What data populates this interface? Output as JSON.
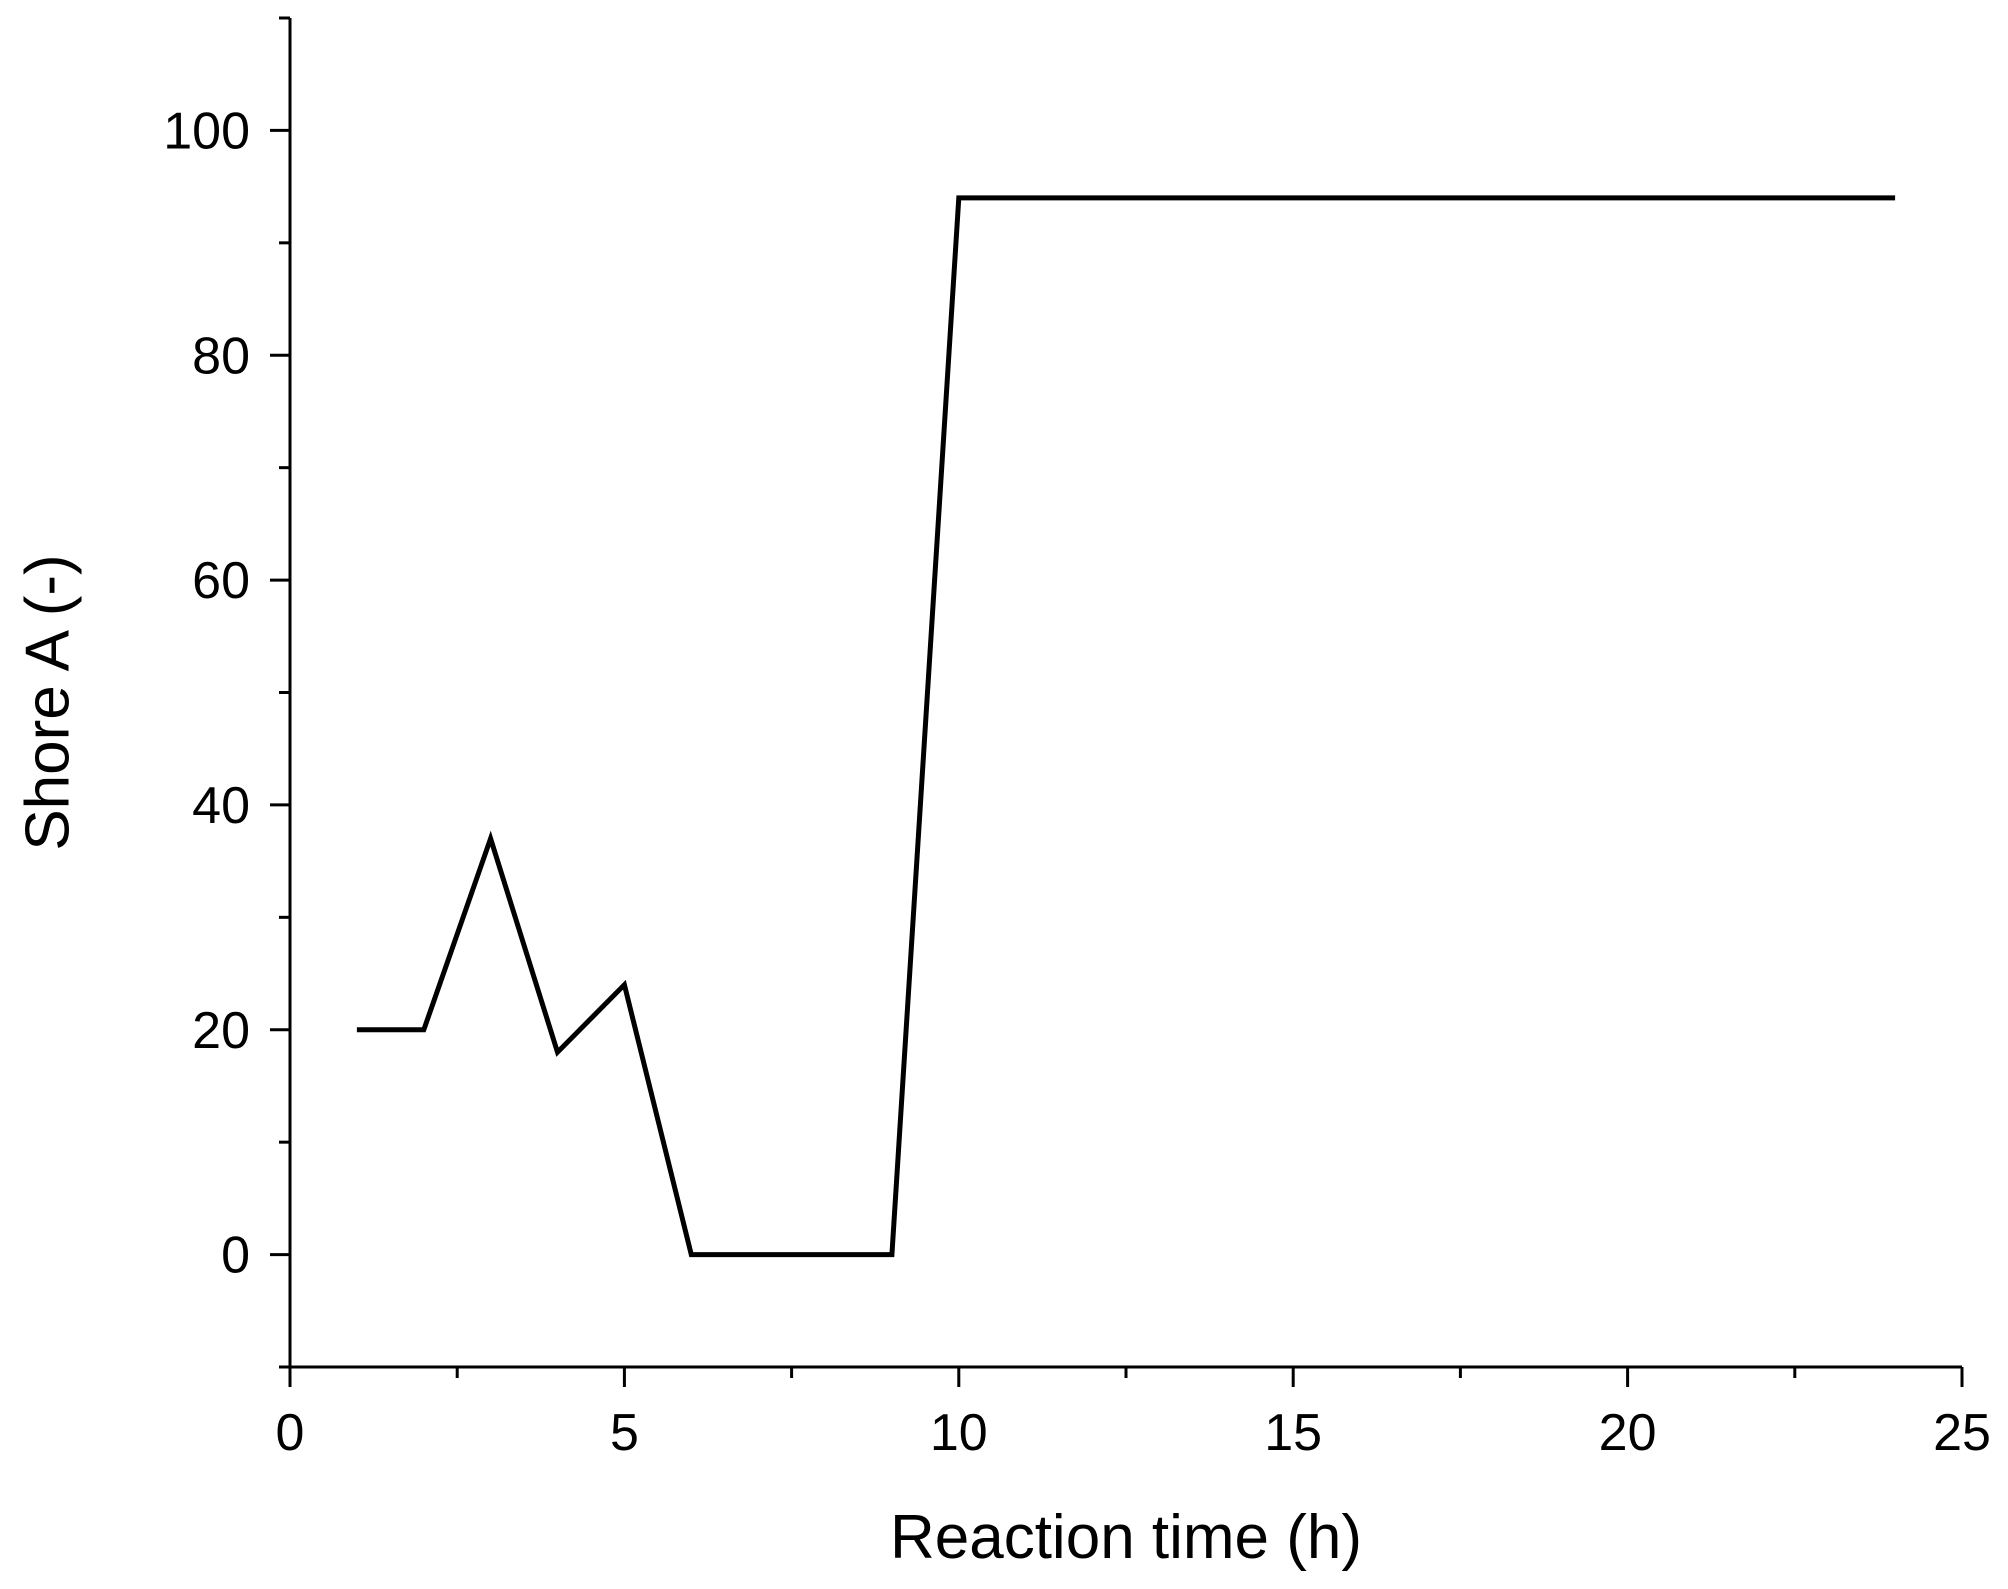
{
  "chart_data": {
    "type": "line",
    "xlabel": "Reaction time (h)",
    "ylabel": "Shore A (-)",
    "xlim": [
      0,
      25
    ],
    "ylim": [
      -10,
      110
    ],
    "x_ticks": [
      0,
      5,
      10,
      15,
      20,
      25
    ],
    "x_minor_ticks": [
      2.5,
      7.5,
      12.5,
      17.5,
      22.5
    ],
    "y_ticks": [
      0,
      20,
      40,
      60,
      80,
      100
    ],
    "y_minor_ticks": [
      -10,
      10,
      30,
      50,
      70,
      90,
      110
    ],
    "grid": false,
    "line_color": "#000000",
    "series": [
      {
        "x": [
          1,
          2,
          3,
          4,
          5,
          6,
          7,
          8,
          9,
          10,
          24
        ],
        "y": [
          20,
          20,
          37,
          18,
          24,
          0,
          0,
          0,
          0,
          94,
          94
        ]
      }
    ]
  }
}
